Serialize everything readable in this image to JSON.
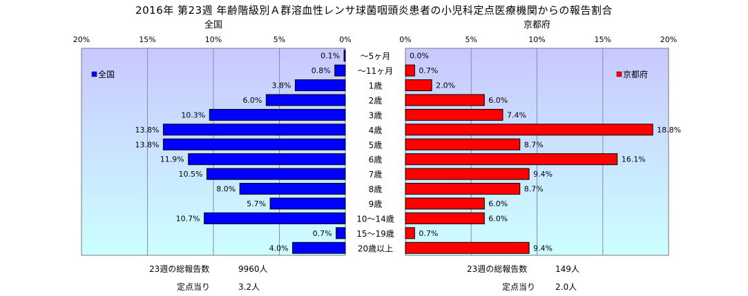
{
  "title": "2016年 第23週 年齢階級別Ａ群溶血性レンサ球菌咽頭炎患者の小児科定点医療機関からの報告割合",
  "chart_data": {
    "type": "bar",
    "orientation": "horizontal",
    "categories": [
      "～5ヶ月",
      "～11ヶ月",
      "1歳",
      "2歳",
      "3歳",
      "4歳",
      "5歳",
      "6歳",
      "7歳",
      "8歳",
      "9歳",
      "10～14歳",
      "15～19歳",
      "20歳以上"
    ],
    "panels": [
      {
        "subtitle": "全国",
        "legend": "全国",
        "legend_position": "top-left",
        "color": "#0000ff",
        "direction": "leftward",
        "xlim": [
          0,
          20
        ],
        "ticks": [
          "0%",
          "5%",
          "10%",
          "15%",
          "20%"
        ],
        "values": [
          0.1,
          0.8,
          3.8,
          6.0,
          10.3,
          13.8,
          13.8,
          11.9,
          10.5,
          8.0,
          5.7,
          10.7,
          0.7,
          4.0
        ],
        "labels": [
          "0.1%",
          "0.8%",
          "3.8%",
          "6.0%",
          "10.3%",
          "13.8%",
          "13.8%",
          "11.9%",
          "10.5%",
          "8.0%",
          "5.7%",
          "10.7%",
          "0.7%",
          "4.0%"
        ]
      },
      {
        "subtitle": "京都府",
        "legend": "京都府",
        "legend_position": "top-right",
        "color": "#ff0000",
        "direction": "rightward",
        "xlim": [
          0,
          20
        ],
        "ticks": [
          "0%",
          "5%",
          "10%",
          "15%",
          "20%"
        ],
        "values": [
          0.0,
          0.7,
          2.0,
          6.0,
          7.4,
          18.8,
          8.7,
          16.1,
          9.4,
          8.7,
          6.0,
          6.0,
          0.7,
          9.4
        ],
        "labels": [
          "0.0%",
          "0.7%",
          "2.0%",
          "6.0%",
          "7.4%",
          "18.8%",
          "8.7%",
          "16.1%",
          "9.4%",
          "8.7%",
          "6.0%",
          "6.0%",
          "0.7%",
          "9.4%"
        ]
      }
    ]
  },
  "footer": {
    "left": {
      "total_label": "23週の総報告数",
      "total_value": "9960人",
      "per_label": "定点当り",
      "per_value": "3.2人"
    },
    "right": {
      "total_label": "23週の総報告数",
      "total_value": "149人",
      "per_label": "定点当り",
      "per_value": "2.0人"
    }
  },
  "colors": {
    "plot_top": "#c8c8ff",
    "plot_bottom": "#ccffff",
    "left_bar": "#0000ff",
    "right_bar": "#ff0000"
  }
}
